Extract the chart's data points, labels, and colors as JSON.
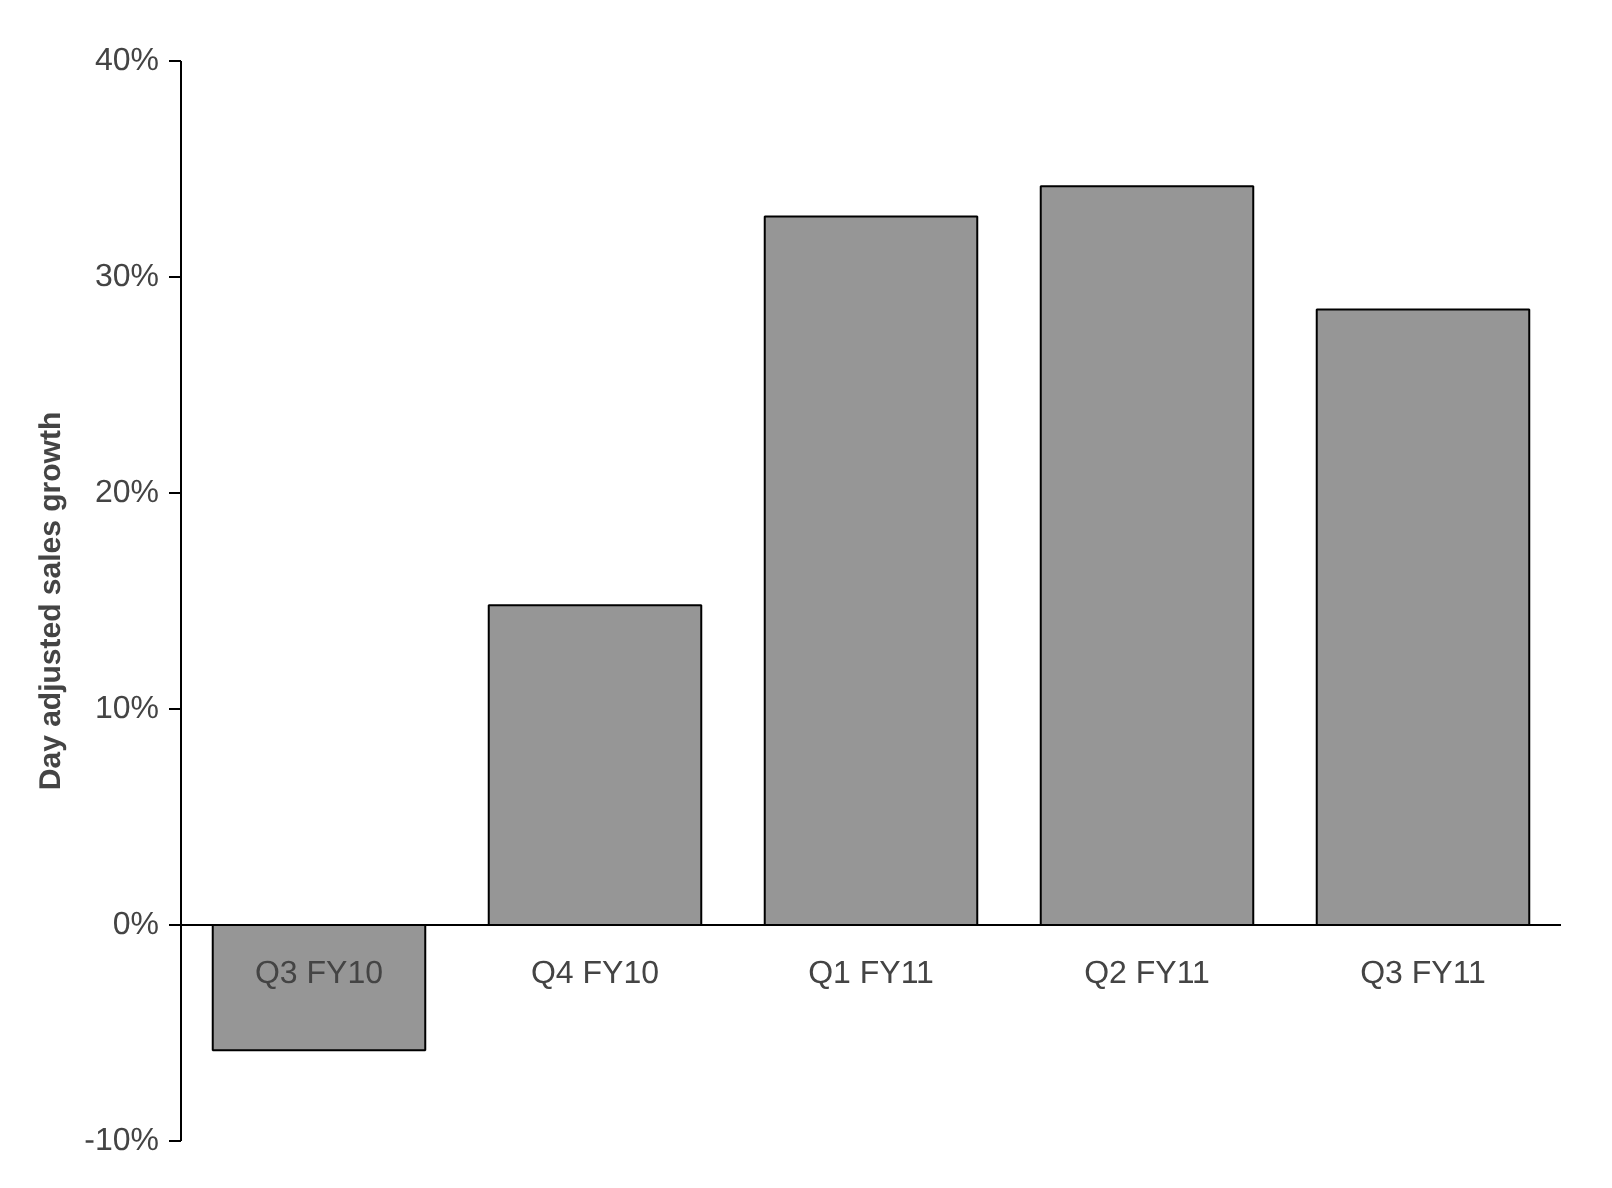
{
  "chart_data": {
    "type": "bar",
    "ylabel": "Day adjusted sales growth",
    "categories": [
      "Q3 FY10",
      "Q4 FY10",
      "Q1 FY11",
      "Q2 FY11",
      "Q3 FY11"
    ],
    "values": [
      -5.8,
      14.8,
      32.8,
      34.2,
      28.5
    ],
    "color": "#969696",
    "ylim": [
      -10,
      40
    ],
    "yticks": [
      {
        "value": -10,
        "label": "-10%"
      },
      {
        "value": 0,
        "label": "0%"
      },
      {
        "value": 10,
        "label": "10%"
      },
      {
        "value": 20,
        "label": "20%"
      },
      {
        "value": 30,
        "label": "30%"
      },
      {
        "value": 40,
        "label": "40%"
      }
    ],
    "grid": false
  }
}
